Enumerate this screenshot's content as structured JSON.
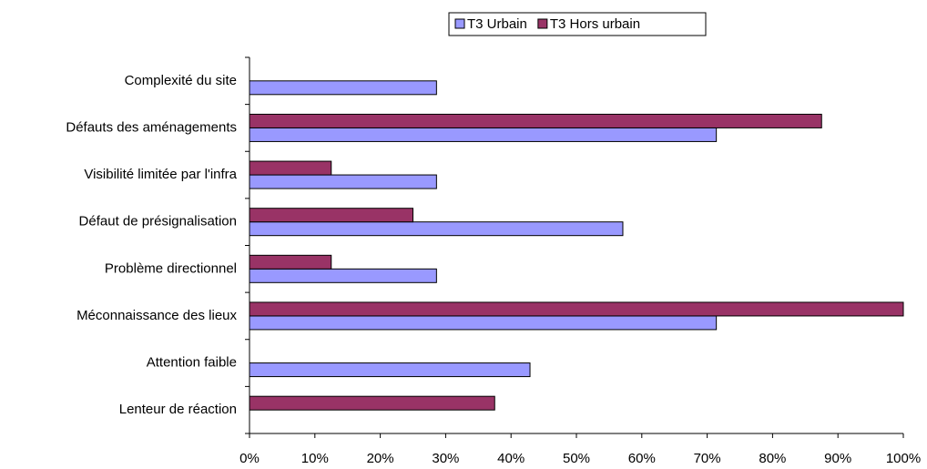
{
  "chart_data": {
    "type": "hbar",
    "categories": [
      "Complexité du site",
      "Défauts des aménagements",
      "Visibilité limitée par l'infra",
      "Défaut de présignalisation",
      "Problème directionnel",
      "Méconnaissance des lieux",
      "Attention faible",
      "Lenteur de réaction"
    ],
    "series": [
      {
        "name": "T3 Urbain",
        "color": "#9999ff",
        "values": [
          28.6,
          71.4,
          28.6,
          57.1,
          28.6,
          71.4,
          42.9,
          null
        ]
      },
      {
        "name": "T3 Hors urbain",
        "color": "#993366",
        "values": [
          null,
          87.5,
          12.5,
          25,
          12.5,
          100,
          null,
          37.5
        ]
      }
    ],
    "xlim": [
      0,
      100
    ],
    "xticks": [
      {
        "value": 0,
        "label": "0%"
      },
      {
        "value": 10,
        "label": "10%"
      },
      {
        "value": 20,
        "label": "20%"
      },
      {
        "value": 30,
        "label": "30%"
      },
      {
        "value": 40,
        "label": "40%"
      },
      {
        "value": 50,
        "label": "50%"
      },
      {
        "value": 60,
        "label": "60%"
      },
      {
        "value": 70,
        "label": "70%"
      },
      {
        "value": 80,
        "label": "80%"
      },
      {
        "value": 90,
        "label": "90%"
      },
      {
        "value": 100,
        "label": "100%"
      }
    ],
    "legend": "top"
  }
}
